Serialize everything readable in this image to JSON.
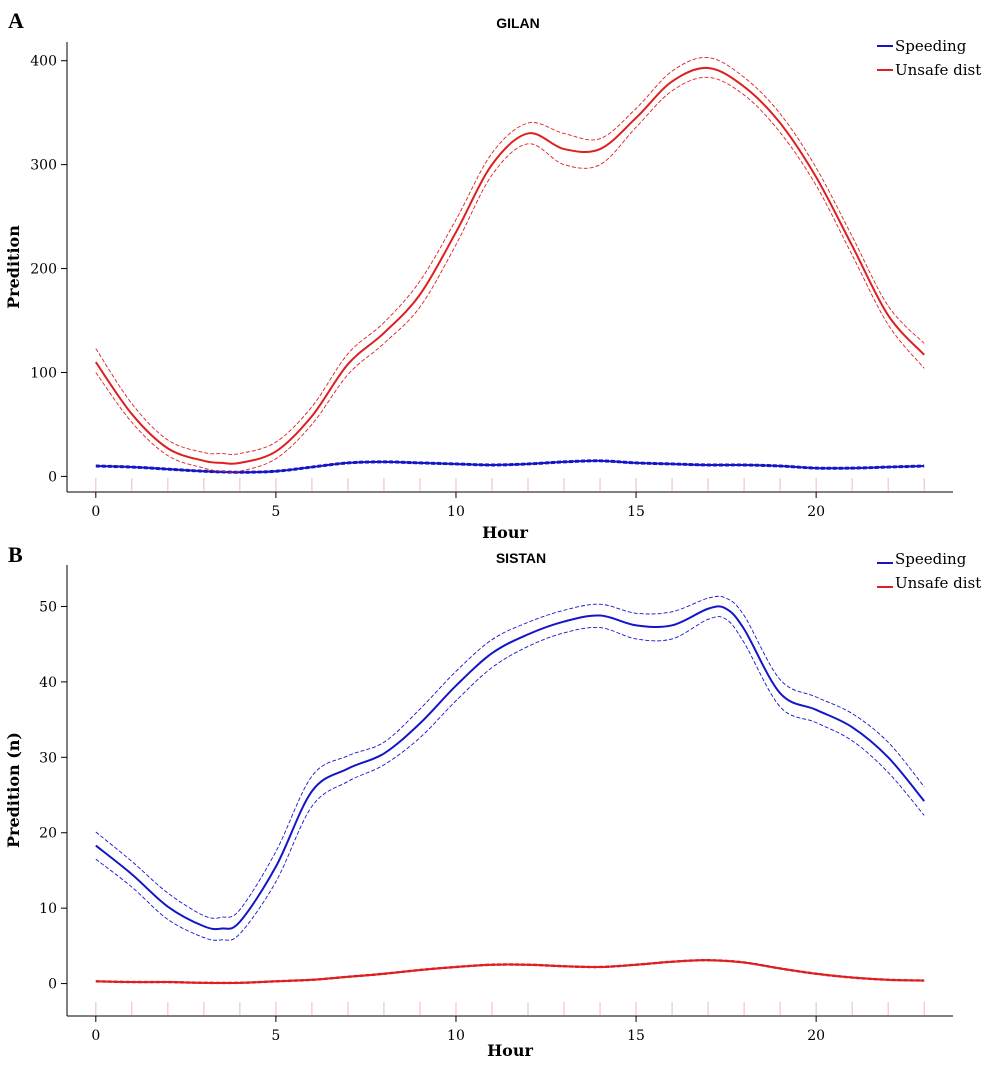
{
  "chart_data": [
    {
      "panel_letter": "A",
      "type": "line",
      "title": "GILAN",
      "xlabel": "Hour",
      "ylabel": "Predition",
      "xlim": [
        -0.8,
        23.8
      ],
      "ylim": [
        -15,
        418
      ],
      "xticks": [
        0,
        5,
        10,
        15,
        20
      ],
      "yticks": [
        0,
        100,
        200,
        300,
        400
      ],
      "rug": [
        0,
        1,
        2,
        3,
        4,
        5,
        6,
        7,
        8,
        9,
        10,
        11,
        12,
        13,
        14,
        15,
        16,
        17,
        18,
        19,
        20,
        21,
        22,
        23
      ],
      "legend_position": "top-right",
      "series": [
        {
          "name": "Speeding",
          "color": "#1515c8",
          "x": [
            0,
            1,
            2,
            3,
            4,
            5,
            6,
            7,
            8,
            9,
            10,
            11,
            12,
            13,
            14,
            15,
            16,
            17,
            18,
            19,
            20,
            21,
            22,
            23
          ],
          "values": [
            10,
            9,
            7,
            5,
            4,
            5,
            9,
            13,
            14,
            13,
            12,
            11,
            12,
            14,
            15,
            13,
            12,
            11,
            11,
            10,
            8,
            8,
            9,
            10
          ],
          "lower": [
            9,
            8,
            6,
            4,
            3,
            4,
            8,
            12,
            13,
            12,
            11,
            10,
            11,
            13,
            14,
            12,
            11,
            10,
            10,
            9,
            7,
            7,
            8,
            9
          ],
          "upper": [
            11,
            10,
            8,
            6,
            5,
            6,
            10,
            14,
            15,
            14,
            13,
            12,
            13,
            15,
            16,
            14,
            13,
            12,
            12,
            11,
            9,
            9,
            10,
            11
          ]
        },
        {
          "name": "Unsafe dist",
          "color": "#dd1f1f",
          "x": [
            0,
            1,
            2,
            3,
            3.5,
            4,
            5,
            6,
            7,
            8,
            9,
            10,
            11,
            12,
            13,
            14,
            15,
            16,
            17,
            18,
            19,
            20,
            21,
            22,
            23
          ],
          "values": [
            110,
            60,
            27,
            15,
            13,
            13,
            24,
            58,
            108,
            138,
            175,
            235,
            300,
            330,
            315,
            315,
            345,
            380,
            393,
            375,
            340,
            288,
            222,
            155,
            117
          ],
          "lower": [
            100,
            52,
            20,
            8,
            5,
            5,
            17,
            50,
            98,
            128,
            163,
            223,
            290,
            320,
            300,
            300,
            336,
            371,
            384,
            367,
            331,
            280,
            213,
            146,
            104
          ],
          "upper": [
            123,
            70,
            35,
            23,
            22,
            22,
            33,
            67,
            118,
            148,
            188,
            247,
            311,
            340,
            330,
            325,
            354,
            390,
            403,
            384,
            349,
            297,
            231,
            164,
            128
          ]
        }
      ]
    },
    {
      "panel_letter": "B",
      "type": "line",
      "title": "SISTAN",
      "xlabel": "Hour",
      "ylabel": "Predition (n)",
      "xlim": [
        -0.8,
        23.8
      ],
      "ylim": [
        -4.3,
        55.5
      ],
      "xticks": [
        0,
        5,
        10,
        15,
        20
      ],
      "yticks": [
        0,
        10,
        20,
        30,
        40,
        50
      ],
      "rug": [
        0,
        1,
        2,
        3,
        4,
        5,
        6,
        7,
        8,
        9,
        10,
        11,
        12,
        13,
        14,
        15,
        16,
        17,
        18,
        19,
        20,
        21,
        22,
        23
      ],
      "legend_position": "top-right",
      "series": [
        {
          "name": "Speeding",
          "color": "#1515c8",
          "x": [
            0,
            1,
            2,
            3,
            3.5,
            4,
            5,
            6,
            7,
            8,
            9,
            10,
            11,
            12,
            13,
            14,
            15,
            16,
            17,
            17.5,
            18,
            19,
            20,
            21,
            22,
            23
          ],
          "values": [
            18.3,
            14.5,
            10.2,
            7.6,
            7.3,
            8.2,
            15.5,
            25.5,
            28.5,
            30.5,
            34.5,
            39.5,
            43.8,
            46.3,
            48,
            48.8,
            47.5,
            47.5,
            49.7,
            49.7,
            47,
            38.5,
            36.3,
            34,
            30,
            24.2
          ],
          "lower": [
            16.5,
            12.8,
            8.5,
            6.1,
            5.8,
            6.6,
            13.5,
            23.5,
            26.8,
            29,
            32.6,
            37.5,
            41.9,
            44.7,
            46.5,
            47.2,
            45.7,
            45.7,
            48.3,
            48.3,
            45.2,
            36.7,
            34.6,
            32.2,
            28,
            22.3
          ],
          "upper": [
            20.1,
            16.2,
            12,
            9,
            8.8,
            9.8,
            17.5,
            27.5,
            30.2,
            32,
            36.4,
            41.4,
            45.6,
            47.9,
            49.5,
            50.3,
            49.1,
            49.3,
            51.1,
            51.1,
            48.8,
            40.3,
            38,
            35.8,
            32,
            26.1
          ]
        },
        {
          "name": "Unsafe dist",
          "color": "#dd1f1f",
          "x": [
            0,
            1,
            2,
            3,
            4,
            5,
            6,
            7,
            8,
            9,
            10,
            11,
            12,
            13,
            14,
            15,
            16,
            17,
            18,
            19,
            20,
            21,
            22,
            23
          ],
          "values": [
            0.3,
            0.2,
            0.2,
            0.1,
            0.1,
            0.3,
            0.5,
            0.9,
            1.3,
            1.8,
            2.2,
            2.5,
            2.5,
            2.3,
            2.2,
            2.5,
            2.9,
            3.1,
            2.8,
            2,
            1.3,
            0.8,
            0.5,
            0.4
          ],
          "lower": [
            0.2,
            0.1,
            0.1,
            0,
            0,
            0.2,
            0.4,
            0.8,
            1.2,
            1.7,
            2.1,
            2.4,
            2.4,
            2.2,
            2.1,
            2.4,
            2.8,
            3,
            2.7,
            1.9,
            1.2,
            0.7,
            0.4,
            0.3
          ],
          "upper": [
            0.4,
            0.3,
            0.3,
            0.2,
            0.2,
            0.4,
            0.6,
            1,
            1.4,
            1.9,
            2.3,
            2.6,
            2.6,
            2.4,
            2.3,
            2.6,
            3,
            3.2,
            2.9,
            2.1,
            1.4,
            0.9,
            0.6,
            0.5
          ]
        }
      ]
    }
  ]
}
